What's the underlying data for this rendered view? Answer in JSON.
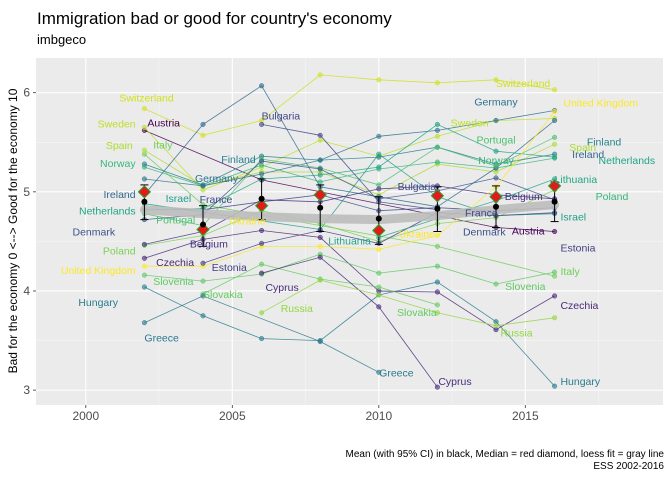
{
  "chart_data": {
    "type": "line",
    "title": "Immigration bad or good for country's economy",
    "subtitle": "imbgeco",
    "xlabel": "",
    "ylabel": "Bad for the economy 0 <--> Good for the economy 10",
    "xlim": [
      1998.3,
      2019.7
    ],
    "ylim": [
      2.85,
      6.35
    ],
    "x_ticks": [
      "2000",
      "2005",
      "2010",
      "2015"
    ],
    "y_ticks": [
      "3",
      "4",
      "5",
      "6"
    ],
    "x_tick_values": [
      2000,
      2005,
      2010,
      2015
    ],
    "y_tick_values": [
      3,
      4,
      5,
      6
    ],
    "grid": true,
    "caption": [
      "Mean (with 95% CI) in black, Median = red diamond, loess fit = gray line",
      "ESS 2002-2016"
    ],
    "summary": {
      "x": [
        2002,
        2004,
        2006,
        2008,
        2010,
        2012,
        2014,
        2016
      ],
      "mean": [
        4.9,
        4.67,
        4.93,
        4.84,
        4.73,
        4.83,
        4.85,
        4.9
      ],
      "ci_low": [
        4.72,
        4.45,
        4.72,
        4.6,
        4.47,
        4.6,
        4.64,
        4.7
      ],
      "ci_high": [
        5.07,
        4.86,
        5.13,
        5.07,
        4.95,
        5.05,
        5.06,
        5.1
      ],
      "median": [
        5.0,
        4.62,
        4.86,
        4.97,
        4.61,
        4.96,
        4.95,
        5.06
      ],
      "loess": [
        4.82,
        4.78,
        4.75,
        4.73,
        4.72,
        4.76,
        4.82,
        4.87
      ]
    },
    "series": [
      {
        "name": "Switzerland",
        "color": "#d0e11c",
        "x": [
          2002,
          2004,
          2006,
          2008,
          2010,
          2012,
          2014,
          2016
        ],
        "values": [
          5.84,
          5.57,
          5.72,
          6.18,
          6.13,
          6.1,
          6.13,
          6.03
        ]
      },
      {
        "name": "Austria",
        "color": "#440154",
        "x": [
          2002,
          2006,
          2014,
          2016
        ],
        "values": [
          5.62,
          5.12,
          4.64,
          4.6
        ]
      },
      {
        "name": "Sweden",
        "color": "#bddf26",
        "x": [
          2002,
          2004,
          2006,
          2008,
          2010,
          2012,
          2014,
          2016
        ],
        "values": [
          5.65,
          5.02,
          5.25,
          5.52,
          5.36,
          5.56,
          5.72,
          5.74
        ]
      },
      {
        "name": "Italy",
        "color": "#6ece58",
        "x": [
          2002,
          2004,
          2012,
          2016
        ],
        "values": [
          5.38,
          4.87,
          4.45,
          4.15
        ]
      },
      {
        "name": "Spain",
        "color": "#addc30",
        "x": [
          2002,
          2004,
          2006,
          2008,
          2010,
          2012,
          2014,
          2016
        ],
        "values": [
          5.42,
          5.06,
          5.2,
          5.2,
          4.97,
          5.28,
          5.2,
          5.48
        ]
      },
      {
        "name": "Norway",
        "color": "#35b779",
        "x": [
          2002,
          2004,
          2006,
          2008,
          2010,
          2012,
          2014,
          2016
        ],
        "values": [
          5.25,
          5.06,
          5.27,
          5.1,
          5.23,
          5.3,
          5.24,
          5.34
        ]
      },
      {
        "name": "Finland",
        "color": "#26828e",
        "x": [
          2002,
          2004,
          2006,
          2008,
          2010,
          2012,
          2014,
          2016
        ],
        "values": [
          5.28,
          5.07,
          5.36,
          5.32,
          5.35,
          5.45,
          5.28,
          5.38
        ]
      },
      {
        "name": "Germany",
        "color": "#2c728e",
        "x": [
          2002,
          2004,
          2006,
          2008,
          2010,
          2012,
          2014,
          2016
        ],
        "values": [
          5.13,
          5.06,
          5.18,
          5.32,
          5.56,
          5.62,
          5.72,
          5.82
        ]
      },
      {
        "name": "Ireland",
        "color": "#31688e",
        "x": [
          2002,
          2004,
          2006,
          2008,
          2010,
          2012,
          2014,
          2016
        ],
        "values": [
          4.97,
          5.68,
          6.07,
          5.05,
          4.95,
          4.85,
          5.24,
          5.72
        ]
      },
      {
        "name": "Israel",
        "color": "#1f9e89",
        "x": [
          2002,
          2008,
          2010,
          2012,
          2014,
          2016
        ],
        "values": [
          4.88,
          4.62,
          5.38,
          4.95,
          4.76,
          4.78
        ]
      },
      {
        "name": "France",
        "color": "#3e4a89",
        "x": [
          2002,
          2004,
          2006,
          2008,
          2010,
          2012,
          2014,
          2016
        ],
        "values": [
          4.82,
          4.82,
          4.9,
          4.97,
          4.81,
          4.84,
          4.81,
          4.84
        ]
      },
      {
        "name": "Netherlands",
        "color": "#20a486",
        "x": [
          2002,
          2004,
          2006,
          2008,
          2010,
          2012,
          2014,
          2016
        ],
        "values": [
          4.82,
          4.83,
          5.13,
          5.17,
          5.25,
          5.68,
          5.41,
          5.35
        ]
      },
      {
        "name": "Portugal",
        "color": "#4ac16d",
        "x": [
          2002,
          2004,
          2006,
          2008,
          2010,
          2012,
          2014,
          2016
        ],
        "values": [
          4.78,
          4.66,
          5.33,
          5.24,
          5.07,
          5.45,
          5.26,
          5.55
        ]
      },
      {
        "name": "Hungary",
        "color": "#287c8e",
        "x": [
          2002,
          2004,
          2006,
          2008,
          2010,
          2012,
          2014,
          2016
        ],
        "values": [
          4.04,
          3.75,
          3.52,
          3.5,
          3.96,
          4.09,
          3.69,
          3.04
        ]
      },
      {
        "name": "Denmark",
        "color": "#3b528b",
        "x": [
          2002,
          2004,
          2006,
          2008,
          2010,
          2012,
          2014,
          2016
        ],
        "values": [
          4.72,
          4.77,
          5.31,
          5.23,
          4.93,
          5.01,
          5.14,
          4.92
        ]
      },
      {
        "name": "Poland",
        "color": "#7ad151",
        "x": [
          2002,
          2004,
          2006,
          2008,
          2010,
          2012,
          2014,
          2016
        ],
        "values": [
          4.46,
          4.56,
          4.81,
          4.68,
          4.5,
          4.68,
          4.74,
          5.02
        ]
      },
      {
        "name": "Belgium",
        "color": "#46327e",
        "x": [
          2002,
          2004,
          2006,
          2008,
          2010,
          2012,
          2014,
          2016
        ],
        "values": [
          4.47,
          4.6,
          4.92,
          4.9,
          5.03,
          5.06,
          4.97,
          4.93
        ]
      },
      {
        "name": "Czechia",
        "color": "#482878",
        "x": [
          2002,
          2004,
          2006,
          2008,
          2010,
          2012,
          2014,
          2016
        ],
        "values": [
          4.33,
          4.52,
          4.61,
          4.54,
          4.0,
          3.99,
          3.61,
          3.95
        ]
      },
      {
        "name": "United Kingdom",
        "color": "#fde725",
        "x": [
          2002,
          2004,
          2006,
          2008,
          2010,
          2012,
          2014,
          2016
        ],
        "values": [
          4.25,
          4.25,
          4.45,
          4.45,
          4.42,
          4.56,
          5.05,
          5.81
        ]
      },
      {
        "name": "Estonia",
        "color": "#433e85",
        "x": [
          2004,
          2006,
          2008,
          2010,
          2012,
          2014,
          2016
        ],
        "values": [
          4.28,
          4.48,
          4.61,
          4.48,
          4.79,
          4.76,
          4.79
        ]
      },
      {
        "name": "Slovenia",
        "color": "#5ec962",
        "x": [
          2002,
          2004,
          2006,
          2008,
          2010,
          2012,
          2014,
          2016
        ],
        "values": [
          4.16,
          4.1,
          4.17,
          4.37,
          4.18,
          4.25,
          4.07,
          4.19
        ]
      },
      {
        "name": "Slovakia",
        "color": "#63cb5f",
        "x": [
          2004,
          2006,
          2008,
          2010,
          2012
        ],
        "values": [
          3.97,
          4.27,
          4.12,
          4.04,
          3.86
        ]
      },
      {
        "name": "Cyprus",
        "color": "#472c7a",
        "x": [
          2006,
          2008,
          2010,
          2012
        ],
        "values": [
          4.18,
          4.34,
          3.84,
          3.03
        ]
      },
      {
        "name": "Russia",
        "color": "#93d741",
        "x": [
          2006,
          2008,
          2010,
          2012,
          2014,
          2016
        ],
        "values": [
          3.78,
          4.11,
          3.96,
          3.78,
          3.65,
          3.73
        ]
      },
      {
        "name": "Greece",
        "color": "#2a788e",
        "x": [
          2002,
          2004,
          2008,
          2010
        ],
        "values": [
          3.68,
          3.95,
          3.49,
          3.18
        ]
      },
      {
        "name": "Bulgaria",
        "color": "#3f4889",
        "x": [
          2006,
          2008,
          2010,
          2012
        ],
        "values": [
          5.68,
          5.57,
          4.9,
          4.82
        ]
      },
      {
        "name": "Lithuania",
        "color": "#22a884",
        "x": [
          2010,
          2012,
          2014,
          2016
        ],
        "values": [
          4.54,
          4.73,
          4.91,
          5.13
        ]
      }
    ],
    "labels": [
      {
        "text": "Switzerland",
        "x": 2003.0,
        "y": 5.95,
        "anchor": "end",
        "color": "#d0e11c"
      },
      {
        "text": "Austria",
        "x": 2002.1,
        "y": 5.7,
        "anchor": "start",
        "color": "#440154"
      },
      {
        "text": "Sweden",
        "x": 2001.7,
        "y": 5.69,
        "anchor": "end",
        "color": "#bddf26"
      },
      {
        "text": "Italy",
        "x": 2002.3,
        "y": 5.48,
        "anchor": "start",
        "color": "#6ece58"
      },
      {
        "text": "Spain",
        "x": 2001.6,
        "y": 5.47,
        "anchor": "end",
        "color": "#addc30"
      },
      {
        "text": "Norway",
        "x": 2001.7,
        "y": 5.29,
        "anchor": "end",
        "color": "#35b779"
      },
      {
        "text": "Finland",
        "x": 2005.8,
        "y": 5.33,
        "anchor": "end",
        "color": "#26828e"
      },
      {
        "text": "Germany",
        "x": 2005.2,
        "y": 5.14,
        "anchor": "end",
        "color": "#2c728e"
      },
      {
        "text": "Ireland",
        "x": 2001.7,
        "y": 4.98,
        "anchor": "end",
        "color": "#31688e"
      },
      {
        "text": "Israel",
        "x": 2003.6,
        "y": 4.94,
        "anchor": "end",
        "color": "#1f9e89"
      },
      {
        "text": "France",
        "x": 2005.0,
        "y": 4.93,
        "anchor": "end",
        "color": "#3e4a89"
      },
      {
        "text": "Netherlands",
        "x": 2001.7,
        "y": 4.81,
        "anchor": "end",
        "color": "#20a486"
      },
      {
        "text": "Portugal",
        "x": 2002.4,
        "y": 4.72,
        "anchor": "start",
        "color": "#4ac16d"
      },
      {
        "text": "Ukraine",
        "x": 2004.9,
        "y": 4.71,
        "anchor": "start",
        "color": "#fde725"
      },
      {
        "text": "Denmark",
        "x": 2001.0,
        "y": 4.6,
        "anchor": "end",
        "color": "#3b528b"
      },
      {
        "text": "Belgium",
        "x": 2004.2,
        "y": 4.48,
        "anchor": "middle",
        "color": "#46327e"
      },
      {
        "text": "Poland",
        "x": 2001.7,
        "y": 4.41,
        "anchor": "end",
        "color": "#7ad151"
      },
      {
        "text": "Czechia",
        "x": 2002.4,
        "y": 4.29,
        "anchor": "start",
        "color": "#482878"
      },
      {
        "text": "Estonia",
        "x": 2004.3,
        "y": 4.24,
        "anchor": "start",
        "color": "#433e85"
      },
      {
        "text": "United Kingdom",
        "x": 2001.7,
        "y": 4.21,
        "anchor": "end",
        "color": "#fde725"
      },
      {
        "text": "Slovenia",
        "x": 2002.3,
        "y": 4.1,
        "anchor": "start",
        "color": "#5ec962"
      },
      {
        "text": "Slovakia",
        "x": 2004.0,
        "y": 3.97,
        "anchor": "start",
        "color": "#63cb5f"
      },
      {
        "text": "Hungary",
        "x": 2001.1,
        "y": 3.89,
        "anchor": "end",
        "color": "#287c8e"
      },
      {
        "text": "Greece",
        "x": 2002.0,
        "y": 3.53,
        "anchor": "start",
        "color": "#2a788e"
      },
      {
        "text": "Bulgaria",
        "x": 2006.0,
        "y": 5.77,
        "anchor": "start",
        "color": "#3f4889"
      },
      {
        "text": "Cyprus",
        "x": 2006.7,
        "y": 4.04,
        "anchor": "middle",
        "color": "#472c7a"
      },
      {
        "text": "Russia",
        "x": 2007.2,
        "y": 3.83,
        "anchor": "middle",
        "color": "#93d741"
      },
      {
        "text": "Lithuania",
        "x": 2009.0,
        "y": 4.51,
        "anchor": "middle",
        "color": "#22a884"
      },
      {
        "text": "Ukraine",
        "x": 2011.3,
        "y": 4.58,
        "anchor": "middle",
        "color": "#fde725"
      },
      {
        "text": "Slovakia",
        "x": 2011.3,
        "y": 3.79,
        "anchor": "middle",
        "color": "#63cb5f"
      },
      {
        "text": "Greece",
        "x": 2010.6,
        "y": 3.18,
        "anchor": "middle",
        "color": "#2a788e"
      },
      {
        "text": "Cyprus",
        "x": 2012.6,
        "y": 3.09,
        "anchor": "middle",
        "color": "#472c7a"
      },
      {
        "text": "Bulgaria",
        "x": 2011.3,
        "y": 5.06,
        "anchor": "middle",
        "color": "#3f4889"
      },
      {
        "text": "Sweden",
        "x": 2013.1,
        "y": 5.7,
        "anchor": "middle",
        "color": "#bddf26"
      },
      {
        "text": "France",
        "x": 2013.5,
        "y": 4.79,
        "anchor": "middle",
        "color": "#3e4a89"
      },
      {
        "text": "Denmark",
        "x": 2013.6,
        "y": 4.6,
        "anchor": "middle",
        "color": "#3b528b"
      },
      {
        "text": "Austria",
        "x": 2015.1,
        "y": 4.61,
        "anchor": "middle",
        "color": "#440154"
      },
      {
        "text": "Switzerland",
        "x": 2014.0,
        "y": 6.1,
        "anchor": "start",
        "color": "#d0e11c"
      },
      {
        "text": "Germany",
        "x": 2014.0,
        "y": 5.91,
        "anchor": "middle",
        "color": "#2c728e"
      },
      {
        "text": "United Kingdom",
        "x": 2016.3,
        "y": 5.9,
        "anchor": "start",
        "color": "#fde725"
      },
      {
        "text": "Ireland",
        "x": 2016.6,
        "y": 5.38,
        "anchor": "start",
        "color": "#31688e"
      },
      {
        "text": "Portugal",
        "x": 2014.0,
        "y": 5.53,
        "anchor": "middle",
        "color": "#4ac16d"
      },
      {
        "text": "Spain",
        "x": 2016.5,
        "y": 5.45,
        "anchor": "start",
        "color": "#addc30"
      },
      {
        "text": "Finland",
        "x": 2017.1,
        "y": 5.51,
        "anchor": "start",
        "color": "#26828e"
      },
      {
        "text": "Norway",
        "x": 2014.0,
        "y": 5.32,
        "anchor": "middle",
        "color": "#35b779"
      },
      {
        "text": "Netherlands",
        "x": 2017.5,
        "y": 5.32,
        "anchor": "start",
        "color": "#20a486"
      },
      {
        "text": "Lithuania",
        "x": 2016.0,
        "y": 5.13,
        "anchor": "start",
        "color": "#22a884"
      },
      {
        "text": "Belgium",
        "x": 2014.3,
        "y": 4.96,
        "anchor": "start",
        "color": "#46327e"
      },
      {
        "text": "Poland",
        "x": 2017.4,
        "y": 4.96,
        "anchor": "start",
        "color": "#35b779"
      },
      {
        "text": "Israel",
        "x": 2016.2,
        "y": 4.75,
        "anchor": "start",
        "color": "#1f9e89"
      },
      {
        "text": "Estonia",
        "x": 2016.2,
        "y": 4.44,
        "anchor": "start",
        "color": "#433e85"
      },
      {
        "text": "Italy",
        "x": 2016.2,
        "y": 4.2,
        "anchor": "start",
        "color": "#6ece58"
      },
      {
        "text": "Slovenia",
        "x": 2015.0,
        "y": 4.05,
        "anchor": "middle",
        "color": "#5ec962"
      },
      {
        "text": "Czechia",
        "x": 2016.2,
        "y": 3.86,
        "anchor": "start",
        "color": "#482878"
      },
      {
        "text": "Russia",
        "x": 2014.7,
        "y": 3.58,
        "anchor": "middle",
        "color": "#93d741"
      },
      {
        "text": "Hungary",
        "x": 2016.2,
        "y": 3.09,
        "anchor": "start",
        "color": "#287c8e"
      }
    ]
  }
}
